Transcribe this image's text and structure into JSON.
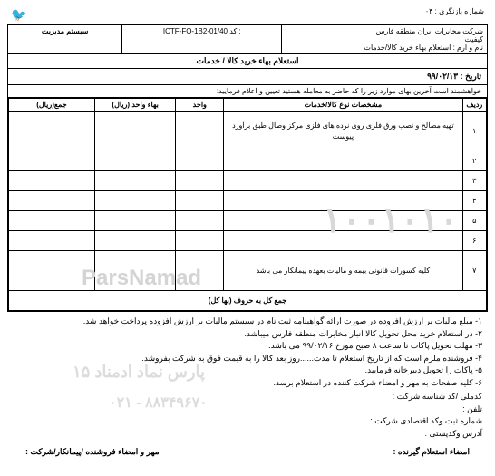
{
  "top": {
    "revision": "شماره بازنگری : ۰۴",
    "bird": "🐦"
  },
  "header": {
    "company": "شرکت مخابرات ایران منطقه فارس",
    "section": "کیفیت",
    "code_label": "کد :",
    "code": "ICTF-FO-1B2-01/40",
    "system": "سیستم مدیریت"
  },
  "form": {
    "name_label": "نام و ارم :",
    "name_value": "استعلام بهاء خرید کالا/خدمات",
    "title": "استعلام بهاء خرید کالا / خدمات",
    "date_label": "تاریخ :",
    "date_value": "۹۹/۰۲/۱۳",
    "instruction": "خواهشمند است آخرین بهای موارد زیر را که حاضر به معامله هستید تعیین و اعلام فرمایید:"
  },
  "table": {
    "headers": {
      "idx": "ردیف",
      "desc": "مشخصات نوع کالا/خدمات",
      "unit": "واحد",
      "price": "بهاء واحد (ریال)",
      "total": "جمع(ریال)"
    },
    "rows": [
      {
        "idx": "۱",
        "desc": "تهیه مصالح و نصب ورق فلزی روی نرده های فلزی مرکز وصال طبق برآورد پیوست"
      },
      {
        "idx": "۲",
        "desc": ""
      },
      {
        "idx": "۳",
        "desc": ""
      },
      {
        "idx": "۴",
        "desc": ""
      },
      {
        "idx": "۵",
        "desc": ""
      },
      {
        "idx": "۶",
        "desc": ""
      },
      {
        "idx": "۷",
        "desc": "کلیه کسورات قانونی بیمه و مالیات بعهده پیمانکار می باشد"
      }
    ],
    "sum_label": "جمع کل به حروف (بها کل)"
  },
  "notes": [
    "۱- مبلغ مالیات بر ارزش افزوده در صورت ارائه گواهینامه ثبت نام در سیستم مالیات بر ارزش افزوده پرداخت خواهد شد.",
    "۲- در استعلام خرید محل تحویل کالا انبار مخابرات منطقه فارس میباشد.",
    "۳- مهلت تحویل پاکات تا ساعت ۸ صبح مورخ ۹۹/۰۲/۱۶ می باشد.",
    "۴- فروشنده ملزم است که از تاریخ استعلام تا مدت......روز بعد کالا را به قیمت فوق به شرکت بفروشد.",
    "۵- پاکات را تحویل دبیرخانه فرمایید.",
    "۶- کلیه صفحات به مهر و امضاء شرکت کننده در استعلام برسد."
  ],
  "fields": {
    "code_name": "کدملی /کد شناسه شرکت :",
    "phone": "تلفن :",
    "reg": "شماره ثبت وکد اقتصادی شرکت :",
    "postal": "آدرس وکدپستی :"
  },
  "sign": {
    "right": "امضاء استعلام گیرنده :",
    "left": "مهر و امضاء فروشنده /پیمانکار/شرکت :"
  },
  "watermarks": {
    "w1": "۱۰۰۱۰۱۰",
    "w2": "ParsNamad",
    "w3": "پارس نماد ادمناد ۱۵",
    "w4": "۰۲۱ - ۸۸۳۴۹۶۷۰"
  }
}
